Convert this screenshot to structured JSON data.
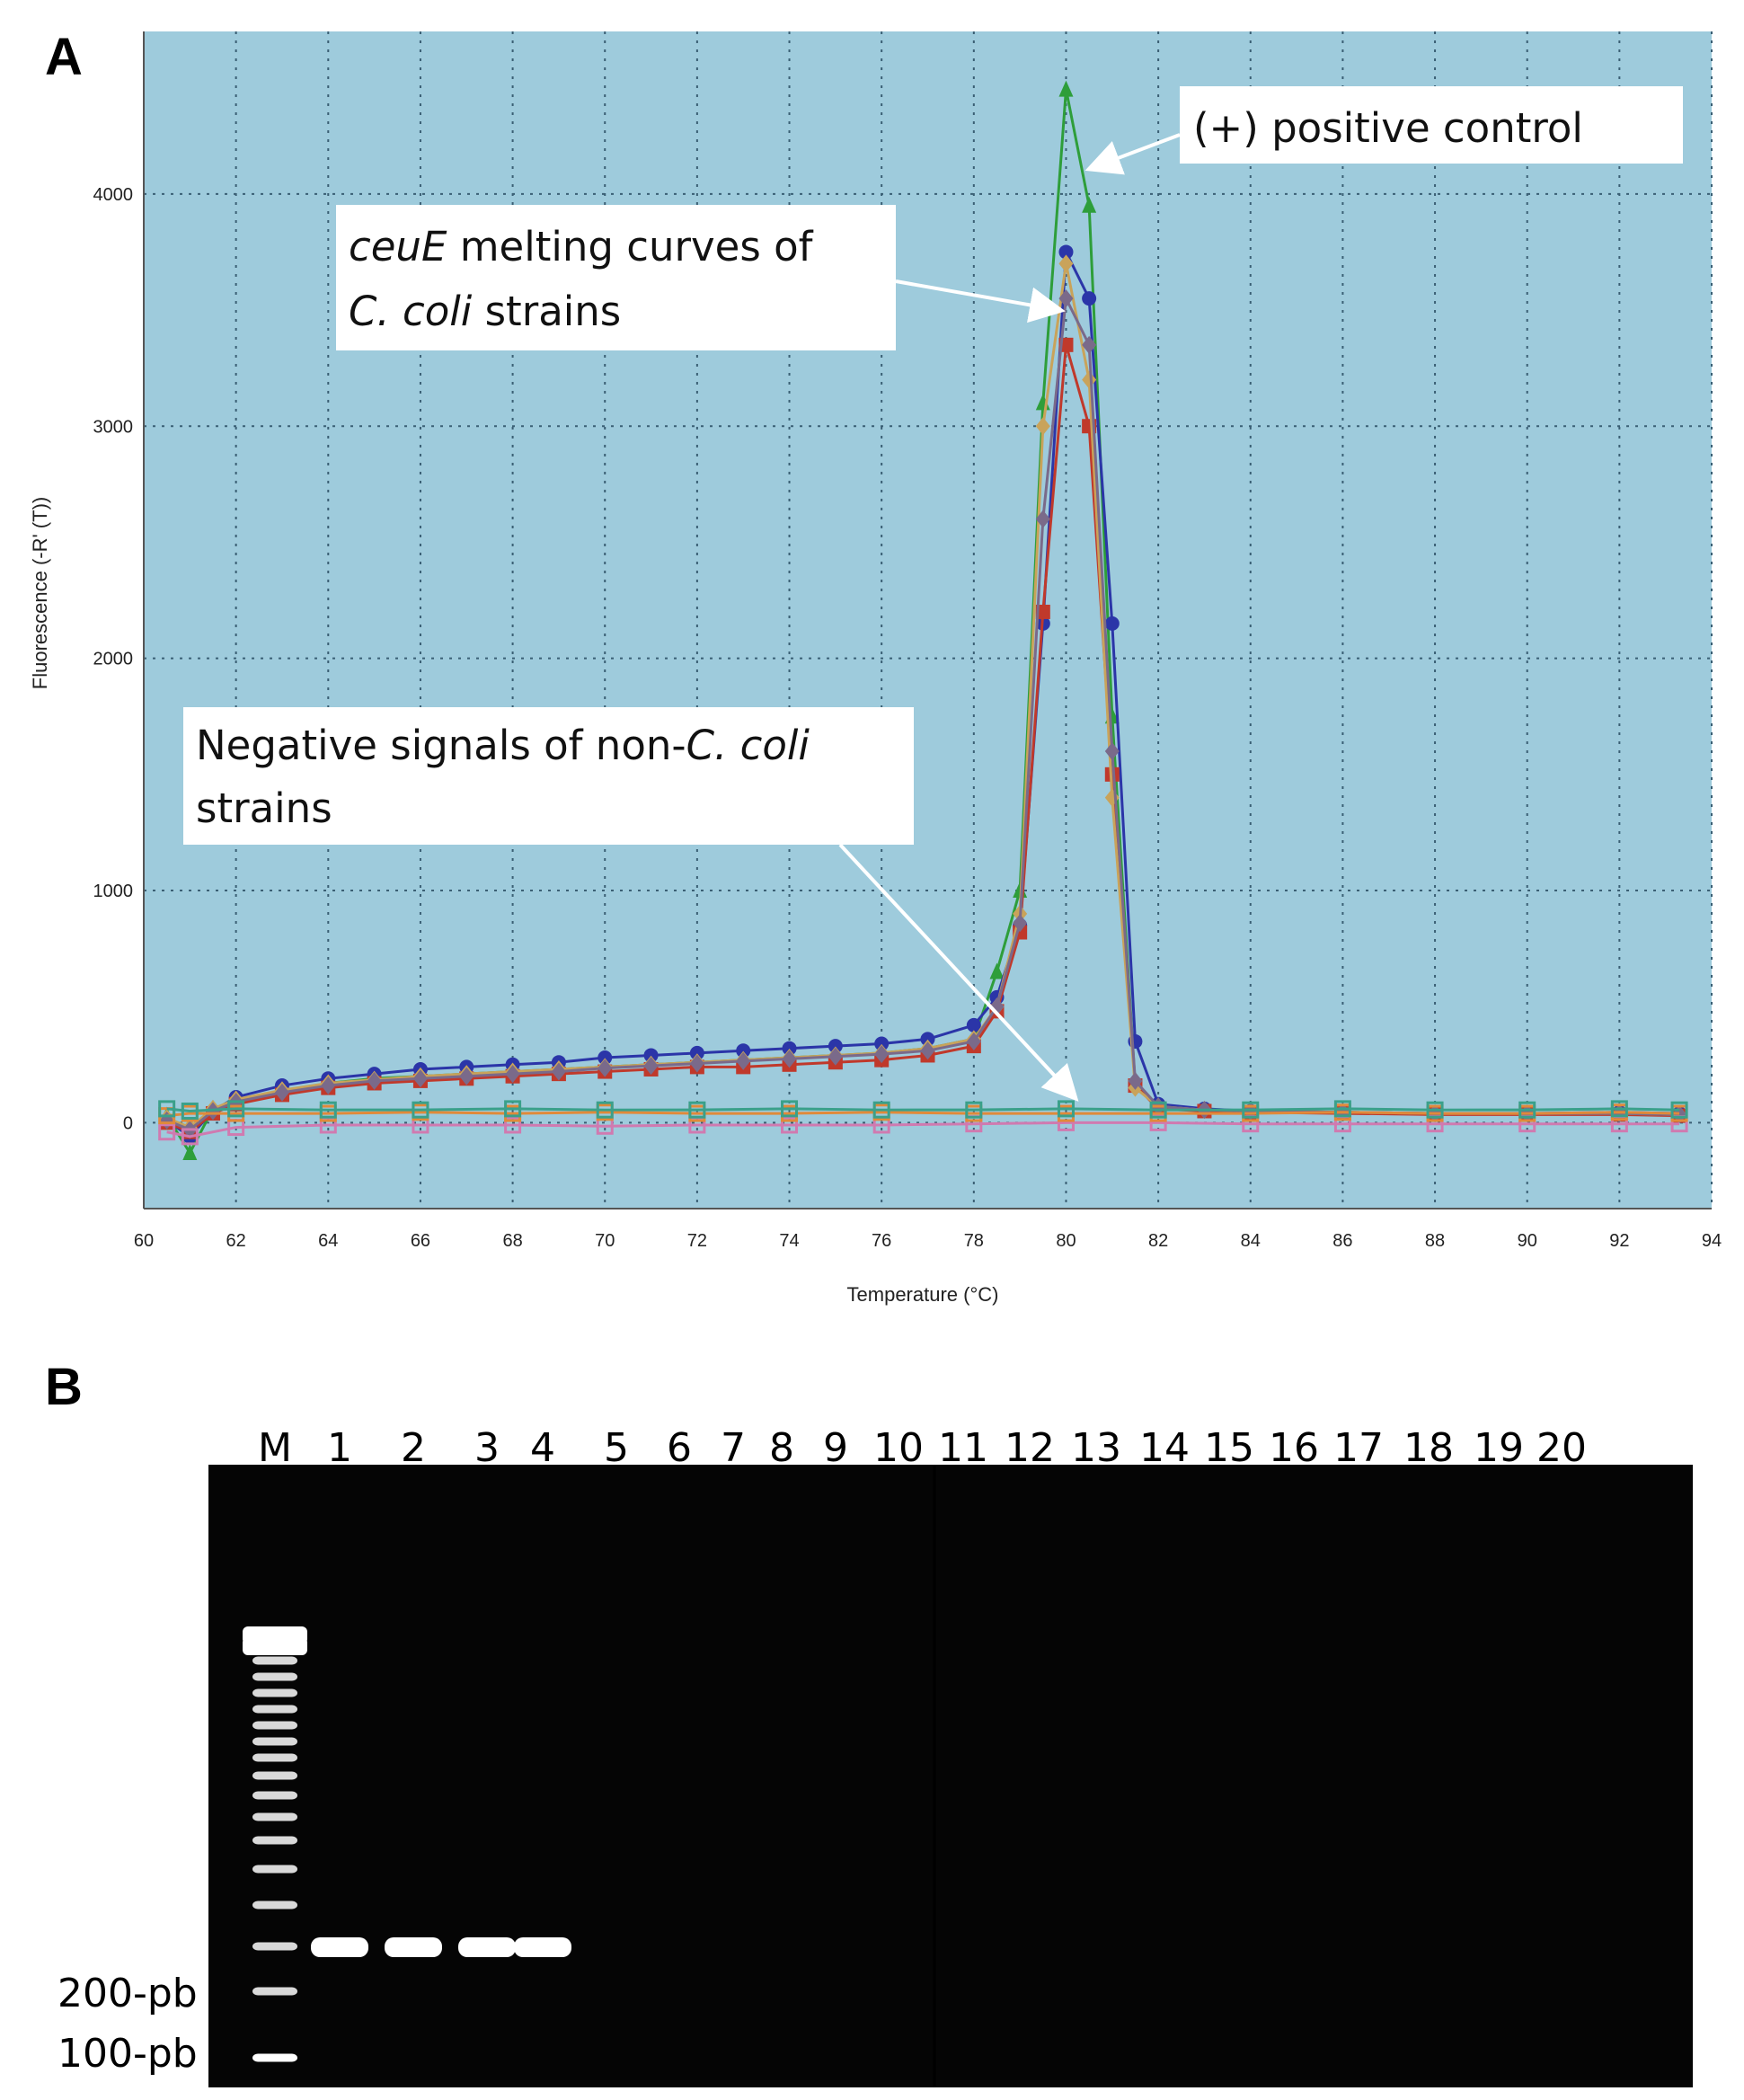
{
  "panelA": {
    "letter": "A"
  },
  "panelB": {
    "letter": "B"
  },
  "chart_data": {
    "type": "line",
    "xlabel": "Temperature (°C)",
    "ylabel": "Fluorescence (-R' (T))",
    "xlim": [
      60,
      94
    ],
    "ylim": [
      -370,
      4700
    ],
    "xticks": [
      60,
      62,
      64,
      66,
      68,
      70,
      72,
      74,
      76,
      78,
      80,
      82,
      84,
      86,
      88,
      90,
      92,
      94
    ],
    "yticks": [
      0,
      1000,
      2000,
      3000,
      4000
    ],
    "grid": true,
    "background": "#9ecbdc",
    "annotations": {
      "positive": "(+) positive control",
      "ceue_em": "ceuE",
      "ceue_line1_rest": " melting curves of",
      "ceue_line2_em": "C. coli",
      "ceue_line2_rest": " strains",
      "neg_line1": "Negative signals of non-",
      "neg_line1_em": "C. coli",
      "neg_line2": "strains"
    },
    "series": [
      {
        "color": "#2e9e3a",
        "marker": "triangle",
        "x": [
          60.5,
          61,
          61.5,
          62,
          63,
          64,
          65,
          66,
          67,
          68,
          69,
          70,
          71,
          72,
          73,
          74,
          75,
          76,
          77,
          78,
          78.5,
          79,
          79.5,
          80,
          80.5,
          81,
          81.5,
          82,
          83,
          84,
          86,
          88,
          90,
          92,
          93.3
        ],
        "y": [
          30,
          -130,
          60,
          90,
          130,
          170,
          190,
          200,
          210,
          220,
          230,
          240,
          250,
          260,
          270,
          280,
          290,
          300,
          320,
          360,
          650,
          1000,
          3100,
          4450,
          3950,
          1750,
          160,
          70,
          55,
          50,
          45,
          40,
          40,
          40,
          35
        ]
      },
      {
        "color": "#2b35a8",
        "marker": "circle",
        "x": [
          60.5,
          61,
          61.5,
          62,
          63,
          64,
          65,
          66,
          67,
          68,
          69,
          70,
          71,
          72,
          73,
          74,
          75,
          76,
          77,
          78,
          78.5,
          79,
          79.5,
          80,
          80.5,
          81,
          81.5,
          82,
          83,
          84,
          86,
          88,
          90,
          92,
          93.3
        ],
        "y": [
          10,
          -60,
          50,
          110,
          160,
          190,
          210,
          230,
          240,
          250,
          260,
          280,
          290,
          300,
          310,
          320,
          330,
          340,
          360,
          420,
          540,
          850,
          2150,
          3750,
          3550,
          2150,
          350,
          80,
          60,
          50,
          45,
          40,
          40,
          45,
          40
        ]
      },
      {
        "color": "#c0392b",
        "marker": "square",
        "x": [
          60.5,
          61,
          61.5,
          62,
          63,
          64,
          65,
          66,
          67,
          68,
          69,
          70,
          71,
          72,
          73,
          74,
          75,
          76,
          77,
          78,
          78.5,
          79,
          79.5,
          80,
          80.5,
          81,
          81.5,
          82,
          83,
          84,
          86,
          88,
          90,
          92,
          93.3
        ],
        "y": [
          0,
          -40,
          40,
          80,
          120,
          150,
          170,
          180,
          190,
          200,
          210,
          220,
          230,
          240,
          240,
          250,
          260,
          270,
          290,
          330,
          480,
          820,
          2200,
          3350,
          3000,
          1500,
          160,
          60,
          50,
          45,
          40,
          35,
          35,
          35,
          30
        ]
      },
      {
        "color": "#c9a35a",
        "marker": "diamond",
        "x": [
          60.5,
          61,
          61.5,
          62,
          63,
          64,
          65,
          66,
          67,
          68,
          69,
          70,
          71,
          72,
          73,
          74,
          75,
          76,
          77,
          78,
          78.5,
          79,
          79.5,
          80,
          80.5,
          81,
          81.5,
          82,
          83,
          84,
          86,
          88,
          90,
          92,
          93.3
        ],
        "y": [
          20,
          -20,
          60,
          100,
          140,
          170,
          185,
          200,
          210,
          220,
          230,
          240,
          250,
          260,
          270,
          280,
          290,
          300,
          320,
          360,
          500,
          900,
          3000,
          3700,
          3200,
          1400,
          150,
          70,
          55,
          50,
          45,
          40,
          40,
          40,
          35
        ]
      },
      {
        "color": "#7a6a8a",
        "marker": "diamond",
        "x": [
          60.5,
          61,
          61.5,
          62,
          63,
          64,
          65,
          66,
          67,
          68,
          69,
          70,
          71,
          72,
          73,
          74,
          75,
          76,
          77,
          78,
          78.5,
          79,
          79.5,
          80,
          80.5,
          81,
          81.5,
          82,
          83,
          84,
          86,
          88,
          90,
          92,
          93.3
        ],
        "y": [
          10,
          -30,
          50,
          90,
          130,
          160,
          180,
          190,
          200,
          210,
          220,
          235,
          245,
          255,
          265,
          275,
          285,
          295,
          310,
          350,
          500,
          860,
          2600,
          3550,
          3350,
          1600,
          180,
          70,
          55,
          50,
          45,
          40,
          40,
          40,
          35
        ]
      },
      {
        "color": "#d07ab0",
        "marker": "square-open",
        "x": [
          60.5,
          61,
          62,
          64,
          66,
          68,
          70,
          72,
          74,
          76,
          78,
          80,
          82,
          84,
          86,
          88,
          90,
          92,
          93.3
        ],
        "y": [
          -40,
          -60,
          -20,
          -10,
          -10,
          -10,
          -15,
          -10,
          -10,
          -10,
          -5,
          0,
          0,
          -5,
          -5,
          -5,
          -5,
          -5,
          -5
        ]
      },
      {
        "color": "#e08a3a",
        "marker": "square-open",
        "x": [
          60.5,
          61,
          62,
          64,
          66,
          68,
          70,
          72,
          74,
          76,
          78,
          80,
          82,
          84,
          86,
          88,
          90,
          92,
          93.3
        ],
        "y": [
          30,
          40,
          40,
          40,
          45,
          40,
          45,
          40,
          40,
          45,
          40,
          40,
          40,
          40,
          45,
          40,
          40,
          45,
          40
        ]
      },
      {
        "color": "#3aa08a",
        "marker": "square-open",
        "x": [
          60.5,
          61,
          62,
          64,
          66,
          68,
          70,
          72,
          74,
          76,
          78,
          80,
          82,
          84,
          86,
          88,
          90,
          92,
          93.3
        ],
        "y": [
          60,
          50,
          60,
          55,
          55,
          60,
          55,
          55,
          60,
          55,
          55,
          60,
          55,
          55,
          60,
          55,
          55,
          60,
          55
        ]
      }
    ]
  },
  "gel": {
    "lane_labels": [
      "M",
      "1",
      "2",
      "3",
      "4",
      "5",
      "6",
      "7",
      "8",
      "9",
      "10",
      "11",
      "12",
      "13",
      "14",
      "15",
      "16",
      "17",
      "18",
      "19",
      "20"
    ],
    "size_labels": [
      "200-pb",
      "100-pb"
    ]
  }
}
